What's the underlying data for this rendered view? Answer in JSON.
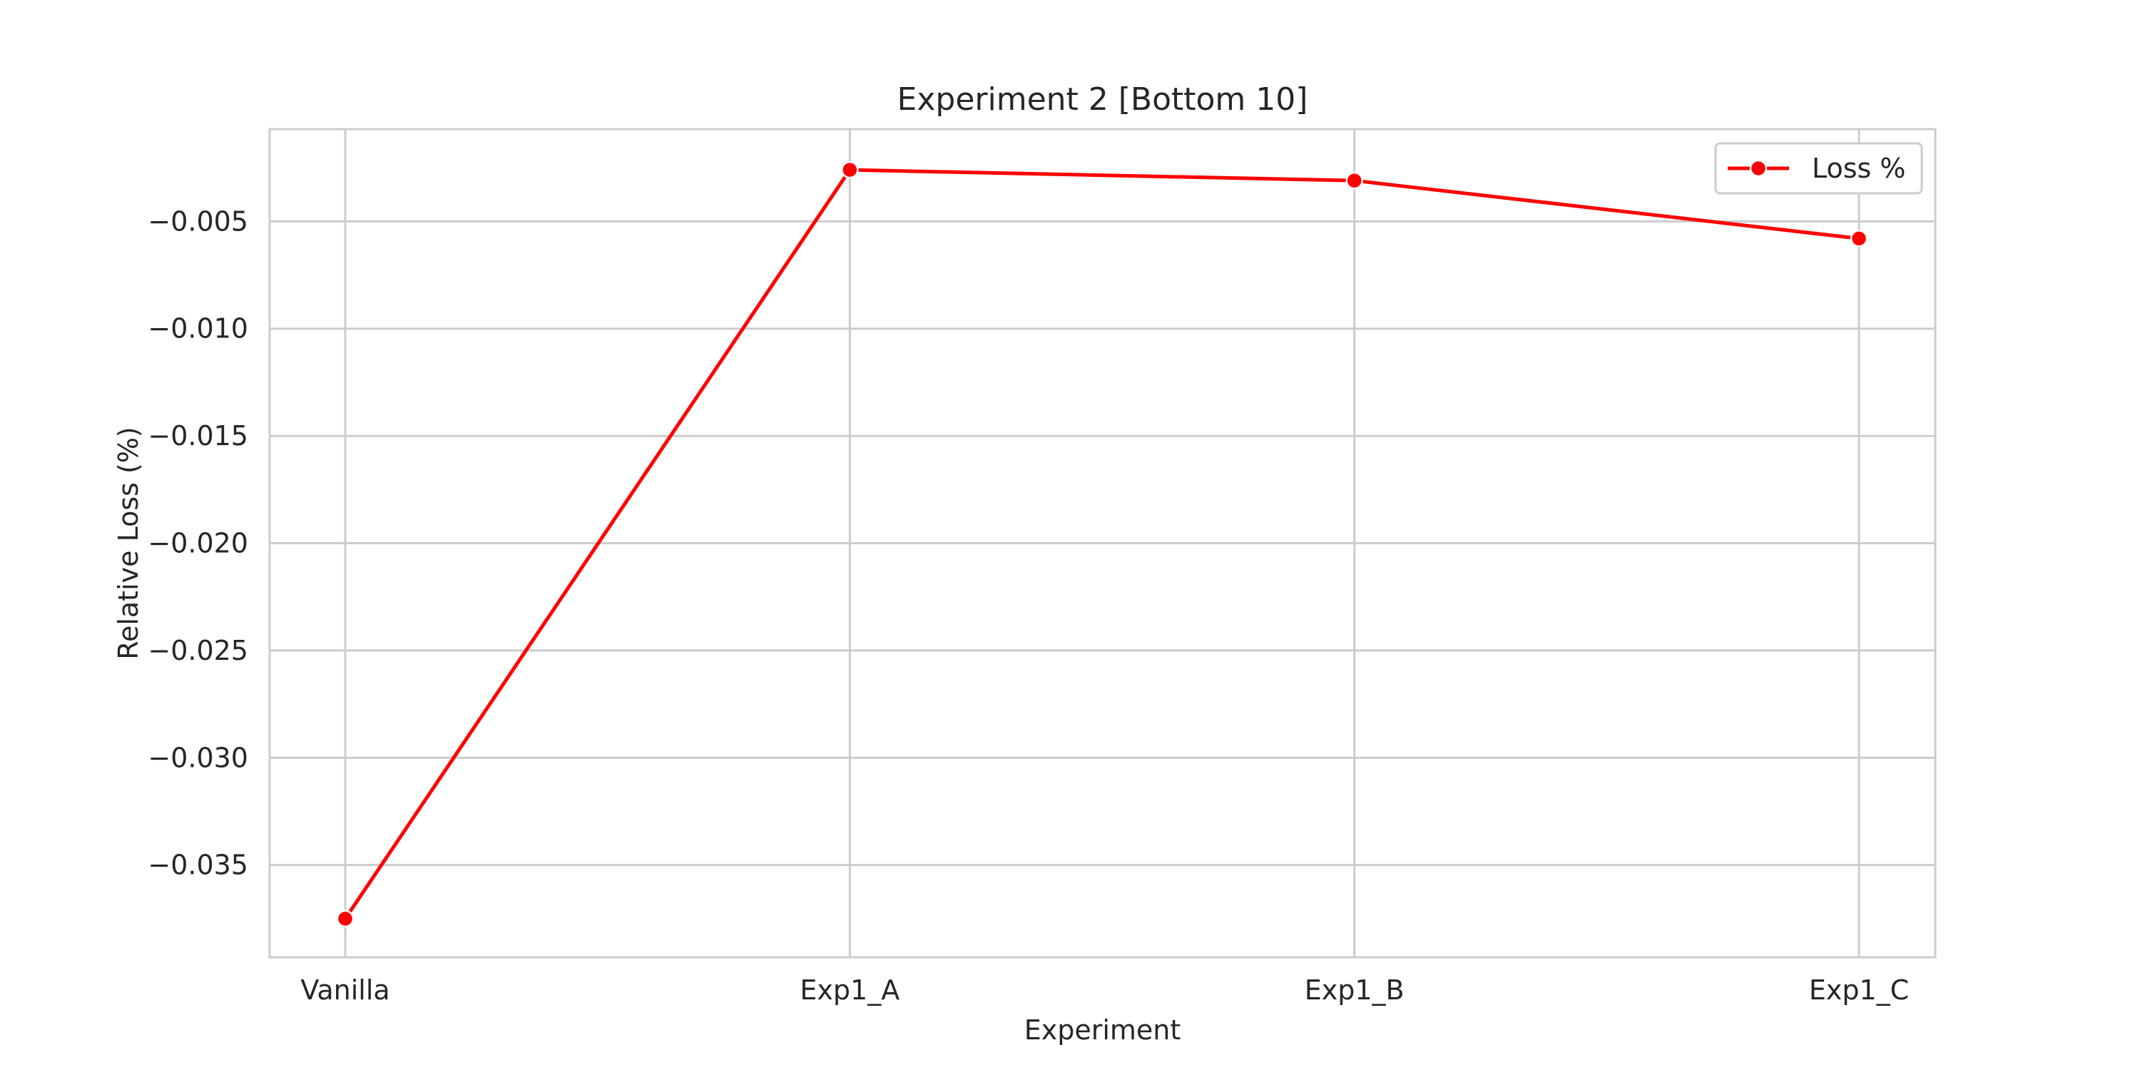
{
  "chart_data": {
    "type": "line",
    "title": "Experiment 2 [Bottom 10]",
    "xlabel": "Experiment",
    "ylabel": "Relative Loss (%)",
    "categories": [
      "Vanilla",
      "Exp1_A",
      "Exp1_B",
      "Exp1_C"
    ],
    "series": [
      {
        "name": "Loss %",
        "values": [
          -0.0375,
          -0.0026,
          -0.0031,
          -0.0058
        ],
        "color": "#ff0000",
        "marker": "circle"
      }
    ],
    "ylim": [
      -0.0393,
      -0.0007
    ],
    "yticks": [
      -0.005,
      -0.01,
      -0.015,
      -0.02,
      -0.025,
      -0.03,
      -0.035
    ],
    "ytick_labels": [
      "−0.005",
      "−0.010",
      "−0.015",
      "−0.020",
      "−0.025",
      "−0.030",
      "−0.035"
    ],
    "grid": true,
    "legend_position": "top-right",
    "colors": {
      "grid": "#cccccc",
      "axes_edge": "#cccccc",
      "text": "#262626",
      "background": "#ffffff"
    }
  }
}
